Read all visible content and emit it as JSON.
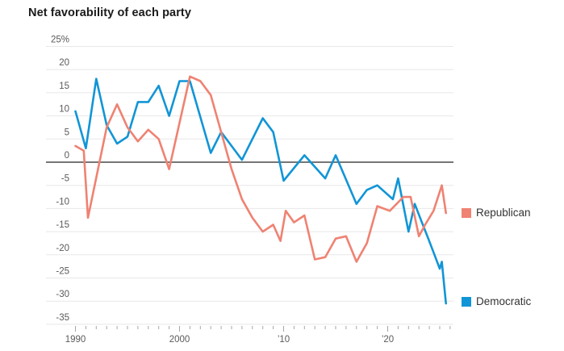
{
  "chart_data": {
    "type": "line",
    "title": "Net favorability of each party",
    "x_axis": {
      "min": 1990,
      "max": 2026,
      "minor_ticks_every_years": 1,
      "major_tick_years": [
        1990,
        2000,
        2010,
        2020
      ],
      "major_tick_labels": [
        "1990",
        "2000",
        "’10",
        "’20"
      ]
    },
    "y_axis": {
      "min": -35,
      "max": 25,
      "step": 5,
      "unit": "%",
      "grid": true,
      "zero_line": true,
      "ticks": [
        {
          "value": 25,
          "label": "25%"
        },
        {
          "value": 20,
          "label": "20"
        },
        {
          "value": 15,
          "label": "15"
        },
        {
          "value": 10,
          "label": "10"
        },
        {
          "value": 5,
          "label": "5"
        },
        {
          "value": 0,
          "label": "0"
        },
        {
          "value": -5,
          "label": "-5"
        },
        {
          "value": -10,
          "label": "-10"
        },
        {
          "value": -15,
          "label": "-15"
        },
        {
          "value": -20,
          "label": "-20"
        },
        {
          "value": -25,
          "label": "-25"
        },
        {
          "value": -30,
          "label": "-30"
        },
        {
          "value": -35,
          "label": "-35"
        }
      ]
    },
    "legend_position": "right",
    "series": [
      {
        "name": "Republican",
        "color": "#ef8272",
        "points": [
          [
            1990,
            3.5
          ],
          [
            1990.8,
            2.5
          ],
          [
            1991.2,
            -12
          ],
          [
            1993,
            7.5
          ],
          [
            1994,
            12.5
          ],
          [
            1995,
            7.5
          ],
          [
            1996,
            4.5
          ],
          [
            1997,
            7
          ],
          [
            1998,
            5
          ],
          [
            1999,
            -1.5
          ],
          [
            2001,
            18.5
          ],
          [
            2002,
            17.5
          ],
          [
            2003,
            14.5
          ],
          [
            2004,
            6.5
          ],
          [
            2005,
            -1.5
          ],
          [
            2006,
            -8
          ],
          [
            2007,
            -12
          ],
          [
            2008,
            -15
          ],
          [
            2009,
            -13.5
          ],
          [
            2009.7,
            -17
          ],
          [
            2010.2,
            -10.5
          ],
          [
            2011,
            -13
          ],
          [
            2012,
            -11.5
          ],
          [
            2013,
            -21
          ],
          [
            2014,
            -20.5
          ],
          [
            2015,
            -16.5
          ],
          [
            2016,
            -16
          ],
          [
            2017,
            -21.5
          ],
          [
            2018,
            -17.5
          ],
          [
            2019,
            -9.5
          ],
          [
            2020.2,
            -10.5
          ],
          [
            2021.5,
            -7.5
          ],
          [
            2022.2,
            -7.5
          ],
          [
            2023,
            -16
          ],
          [
            2023.6,
            -13.5
          ],
          [
            2024.4,
            -10.5
          ],
          [
            2025.2,
            -5
          ],
          [
            2025.6,
            -11
          ]
        ]
      },
      {
        "name": "Democratic",
        "color": "#1195d6",
        "points": [
          [
            1990,
            11
          ],
          [
            1991,
            3
          ],
          [
            1992,
            18
          ],
          [
            1993,
            8
          ],
          [
            1994,
            4
          ],
          [
            1995,
            5.5
          ],
          [
            1996,
            13
          ],
          [
            1997,
            13
          ],
          [
            1998,
            16.5
          ],
          [
            1999,
            10
          ],
          [
            2000,
            17.5
          ],
          [
            2001,
            17.5
          ],
          [
            2003,
            2
          ],
          [
            2004,
            6.5
          ],
          [
            2005,
            3.5
          ],
          [
            2006,
            0.5
          ],
          [
            2008,
            9.5
          ],
          [
            2009,
            6.5
          ],
          [
            2010,
            -4
          ],
          [
            2012,
            1.5
          ],
          [
            2013,
            -1
          ],
          [
            2014,
            -3.5
          ],
          [
            2015,
            1.5
          ],
          [
            2017,
            -9
          ],
          [
            2018,
            -6
          ],
          [
            2019,
            -5
          ],
          [
            2020.5,
            -8
          ],
          [
            2021,
            -3.5
          ],
          [
            2022,
            -15
          ],
          [
            2022.6,
            -9
          ],
          [
            2023.2,
            -12.5
          ],
          [
            2023.9,
            -16.5
          ],
          [
            2024.5,
            -20
          ],
          [
            2025,
            -23
          ],
          [
            2025.2,
            -21.5
          ],
          [
            2025.6,
            -30.5
          ]
        ]
      }
    ]
  }
}
